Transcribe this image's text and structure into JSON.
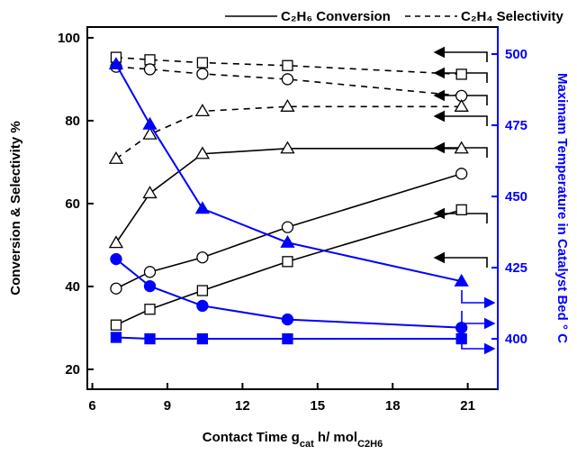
{
  "chart_data": {
    "type": "line",
    "legend": [
      {
        "name": "C₂H₆ Conversion",
        "dash": false
      },
      {
        "name": "C₂H₄ Selectivity",
        "dash": true
      }
    ],
    "xlabel": [
      {
        "text": "Contact Time g"
      },
      {
        "text": "cat",
        "sub": true
      },
      {
        "text": " h/ mol"
      },
      {
        "text": "C2H6",
        "sub": true
      }
    ],
    "ylabel": "Conversion & Selectivity  %",
    "y2label": "Maximam Temperature in Catalyst Bed ° C",
    "x": [
      6.95,
      8.3,
      10.4,
      13.8,
      20.75
    ],
    "xlim": [
      5.8,
      22.2
    ],
    "xticks": [
      6,
      9,
      12,
      15,
      18,
      21
    ],
    "ylim": [
      15.2,
      102.6
    ],
    "yticks": [
      20,
      40,
      60,
      80,
      100
    ],
    "y2lim": [
      382.3,
      509.5
    ],
    "y2ticks": [
      400,
      425,
      450,
      475,
      500
    ],
    "series": [
      {
        "marker": "square",
        "dash": false,
        "color": "#000000",
        "values": [
          30.7,
          34.5,
          39,
          46,
          58.5
        ]
      },
      {
        "marker": "circle",
        "dash": false,
        "color": "#000000",
        "values": [
          39.5,
          43.5,
          47,
          54.3,
          67.2
        ]
      },
      {
        "marker": "triangle",
        "dash": false,
        "color": "#000000",
        "values": [
          50.5,
          62.5,
          72,
          73.3,
          73.3
        ]
      },
      {
        "marker": "square",
        "dash": true,
        "color": "#000000",
        "values": [
          95.3,
          94.7,
          94,
          93.3,
          91.2
        ]
      },
      {
        "marker": "circle",
        "dash": true,
        "color": "#000000",
        "values": [
          93,
          92.4,
          91.3,
          90,
          86
        ]
      },
      {
        "marker": "triangle",
        "dash": true,
        "color": "#000000",
        "values": [
          70.8,
          76.7,
          82.3,
          83.4,
          83.4
        ]
      },
      {
        "marker": "triangle",
        "dash": false,
        "color": "#0000ff",
        "filled": true,
        "axis": "y2",
        "values": [
          496.4,
          475.3,
          445.7,
          433.8,
          420.2
        ]
      },
      {
        "marker": "circle",
        "dash": false,
        "color": "#0000ff",
        "filled": true,
        "axis": "y2",
        "values": [
          428,
          418.5,
          411.6,
          406.8,
          403.9
        ]
      },
      {
        "marker": "square",
        "dash": false,
        "color": "#0000ff",
        "filled": true,
        "axis": "y2",
        "values": [
          400.5,
          400,
          400,
          400,
          400
        ]
      }
    ]
  }
}
